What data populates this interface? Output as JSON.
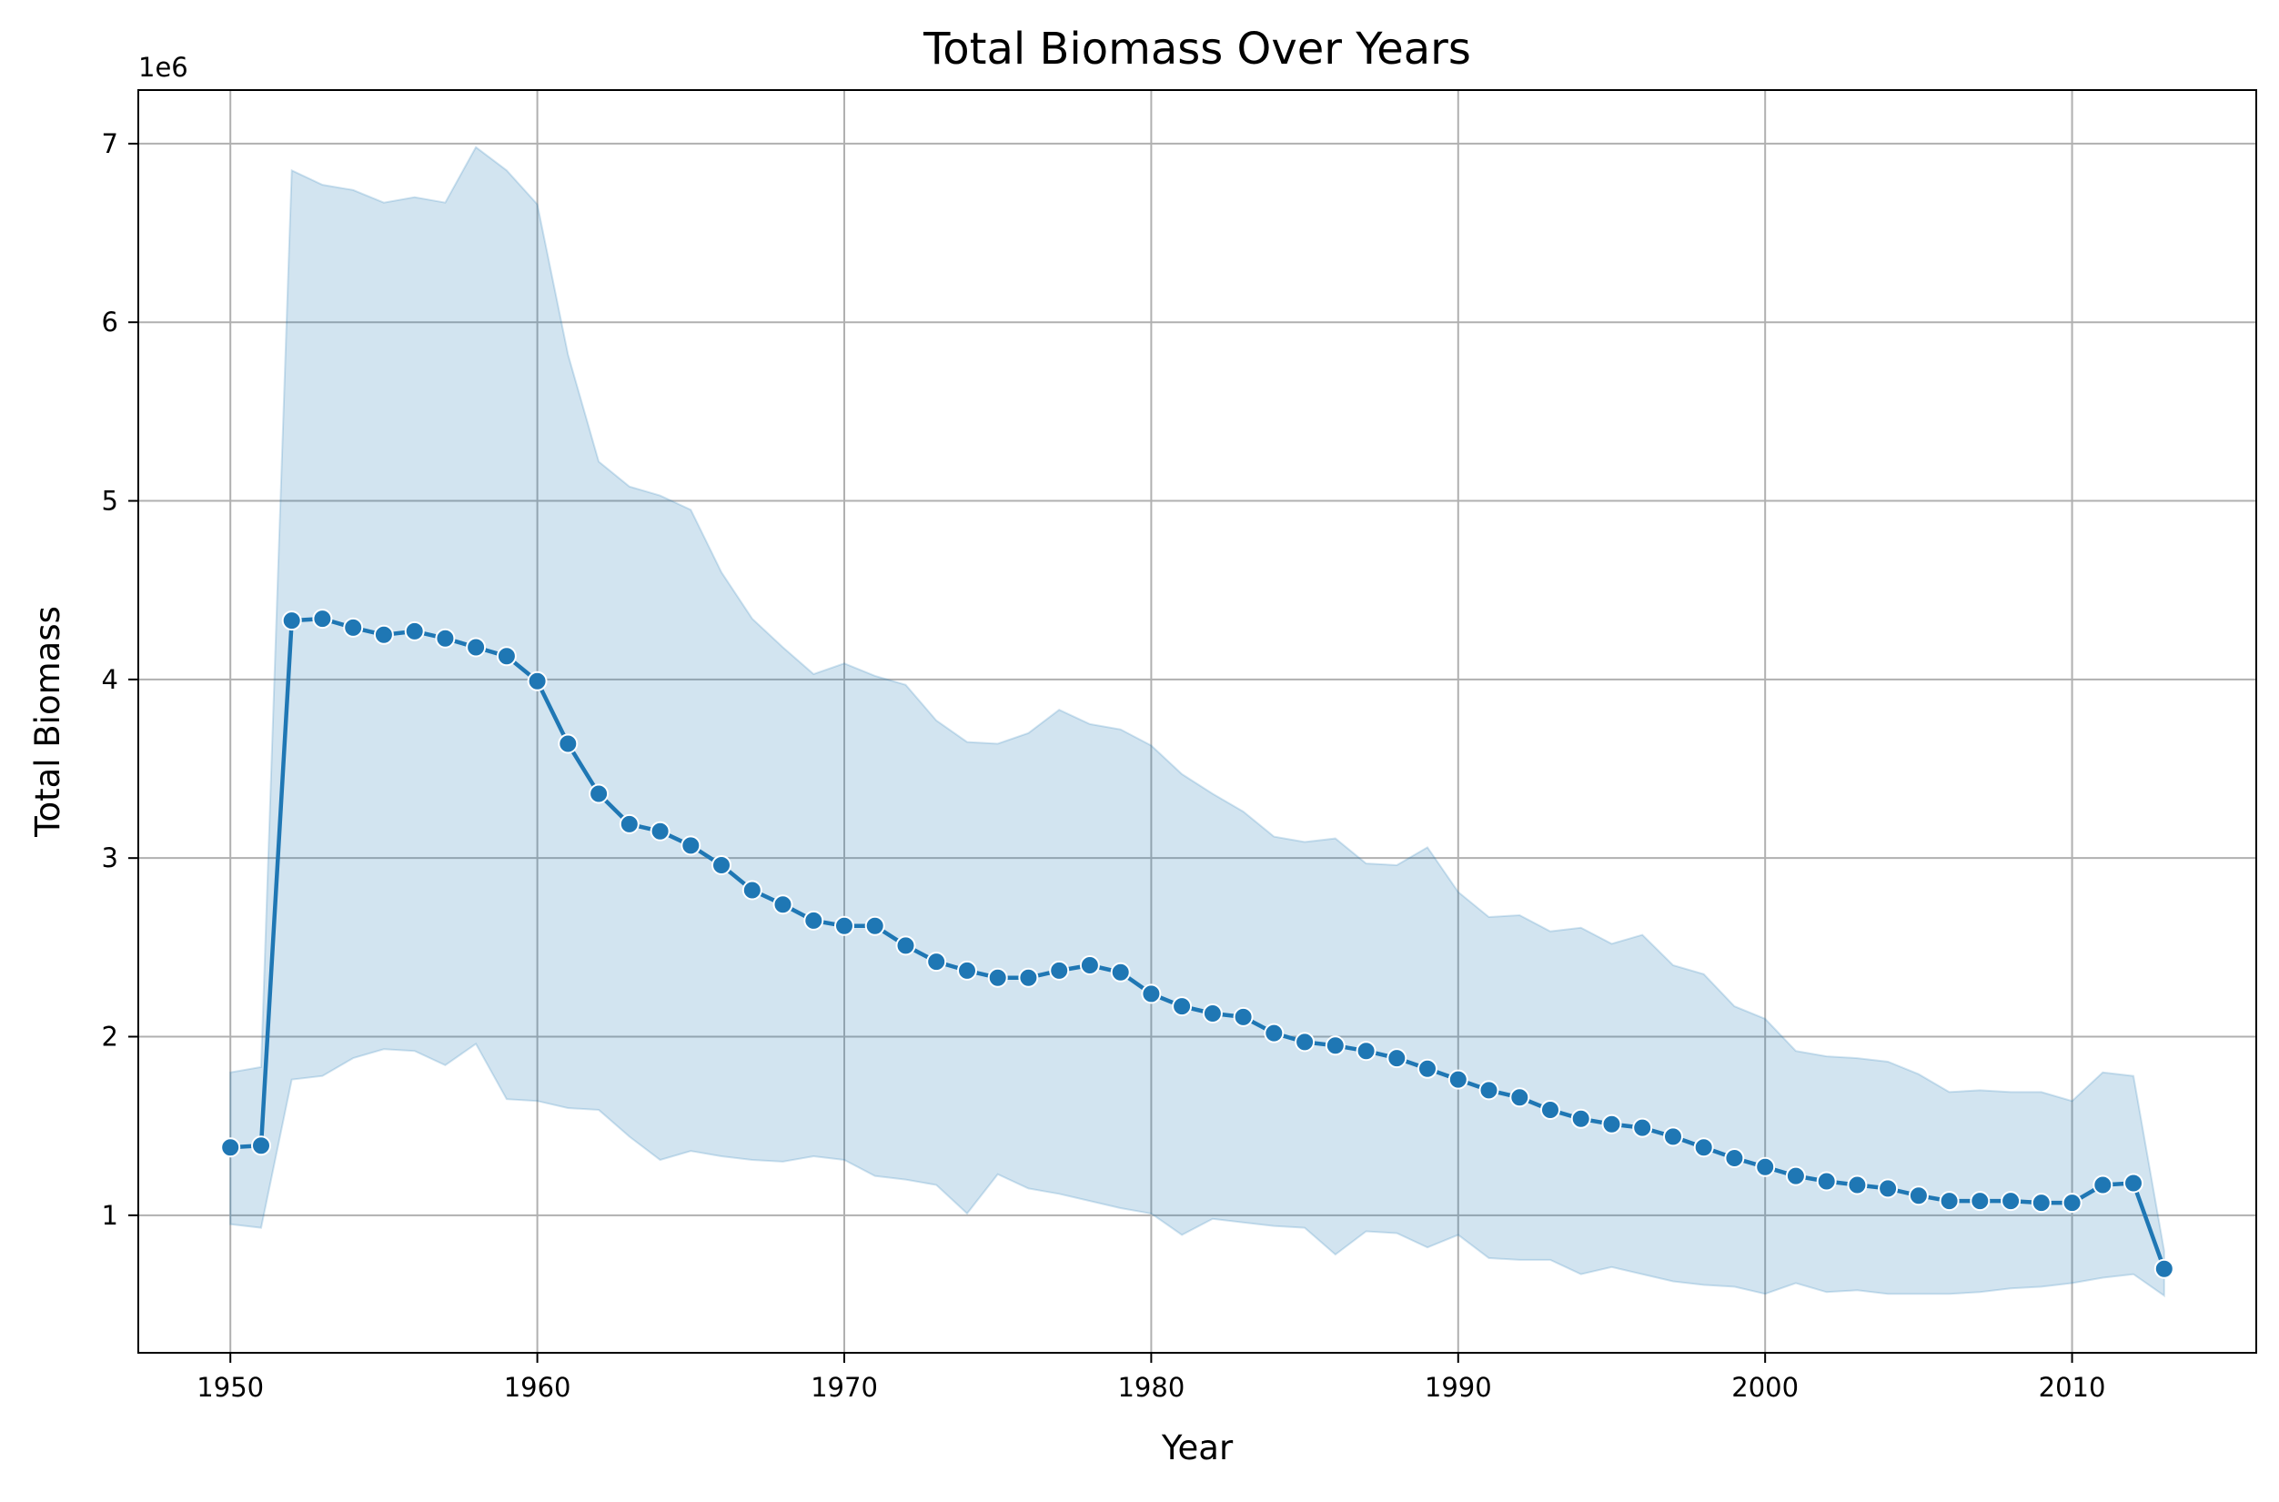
{
  "chart_data": {
    "type": "line",
    "title": "Total Biomass Over Years",
    "xlabel": "Year",
    "ylabel": "Total Biomass",
    "y_offset_label": "1e6",
    "xlim": [
      1947,
      2016
    ],
    "ylim": [
      230000,
      7300000
    ],
    "x_ticks": [
      1950,
      1960,
      1970,
      1980,
      1990,
      2000,
      2010
    ],
    "x_tick_labels": [
      "1950",
      "1960",
      "1970",
      "1980",
      "1990",
      "2000",
      "2010"
    ],
    "y_ticks": [
      1000000,
      2000000,
      3000000,
      4000000,
      5000000,
      6000000,
      7000000
    ],
    "y_tick_labels": [
      "1",
      "2",
      "3",
      "4",
      "5",
      "6",
      "7"
    ],
    "grid": true,
    "colors": {
      "line": "#1f77b4",
      "band": "#1f77b4",
      "grid": "#b0b0b0"
    },
    "x": [
      1950,
      1951,
      1952,
      1953,
      1954,
      1955,
      1956,
      1957,
      1958,
      1959,
      1960,
      1961,
      1962,
      1963,
      1964,
      1965,
      1966,
      1967,
      1968,
      1969,
      1970,
      1971,
      1972,
      1973,
      1974,
      1975,
      1976,
      1977,
      1978,
      1979,
      1980,
      1981,
      1982,
      1983,
      1984,
      1985,
      1986,
      1987,
      1988,
      1989,
      1990,
      1991,
      1992,
      1993,
      1994,
      1995,
      1996,
      1997,
      1998,
      1999,
      2000,
      2001,
      2002,
      2003,
      2004,
      2005,
      2006,
      2007,
      2008,
      2009,
      2010,
      2011,
      2012,
      2013
    ],
    "series": [
      {
        "values": [
          1380000,
          1390000,
          4330000,
          4340000,
          4290000,
          4250000,
          4270000,
          4230000,
          4180000,
          4130000,
          3990000,
          3640000,
          3360000,
          3190000,
          3150000,
          3070000,
          2960000,
          2820000,
          2740000,
          2650000,
          2620000,
          2620000,
          2510000,
          2420000,
          2370000,
          2330000,
          2330000,
          2370000,
          2400000,
          2360000,
          2240000,
          2170000,
          2130000,
          2110000,
          2020000,
          1970000,
          1950000,
          1920000,
          1880000,
          1820000,
          1760000,
          1700000,
          1660000,
          1590000,
          1540000,
          1510000,
          1490000,
          1440000,
          1380000,
          1320000,
          1270000,
          1220000,
          1190000,
          1170000,
          1150000,
          1110000,
          1080000,
          1080000,
          1080000,
          1070000,
          1070000,
          1170000,
          1180000,
          700000
        ],
        "ci_upper": [
          1800000,
          1830000,
          6850000,
          6770000,
          6740000,
          6670000,
          6700000,
          6670000,
          6980000,
          6850000,
          6660000,
          5820000,
          5220000,
          5080000,
          5030000,
          4950000,
          4600000,
          4340000,
          4180000,
          4030000,
          4090000,
          4020000,
          3970000,
          3770000,
          3650000,
          3640000,
          3700000,
          3830000,
          3750000,
          3720000,
          3630000,
          3470000,
          3360000,
          3260000,
          3120000,
          3090000,
          3110000,
          2970000,
          2960000,
          3060000,
          2810000,
          2670000,
          2680000,
          2590000,
          2610000,
          2520000,
          2570000,
          2400000,
          2350000,
          2170000,
          2100000,
          1920000,
          1890000,
          1880000,
          1860000,
          1790000,
          1690000,
          1700000,
          1690000,
          1690000,
          1640000,
          1800000,
          1780000,
          800000
        ],
        "ci_lower": [
          950000,
          930000,
          1760000,
          1780000,
          1880000,
          1930000,
          1920000,
          1840000,
          1960000,
          1650000,
          1640000,
          1600000,
          1590000,
          1440000,
          1310000,
          1360000,
          1330000,
          1310000,
          1300000,
          1330000,
          1310000,
          1220000,
          1200000,
          1170000,
          1010000,
          1230000,
          1150000,
          1120000,
          1080000,
          1040000,
          1010000,
          890000,
          980000,
          960000,
          940000,
          930000,
          780000,
          910000,
          900000,
          820000,
          890000,
          760000,
          750000,
          750000,
          670000,
          710000,
          670000,
          630000,
          610000,
          600000,
          560000,
          620000,
          570000,
          580000,
          560000,
          560000,
          560000,
          570000,
          590000,
          600000,
          620000,
          650000,
          670000,
          550000
        ]
      }
    ]
  }
}
